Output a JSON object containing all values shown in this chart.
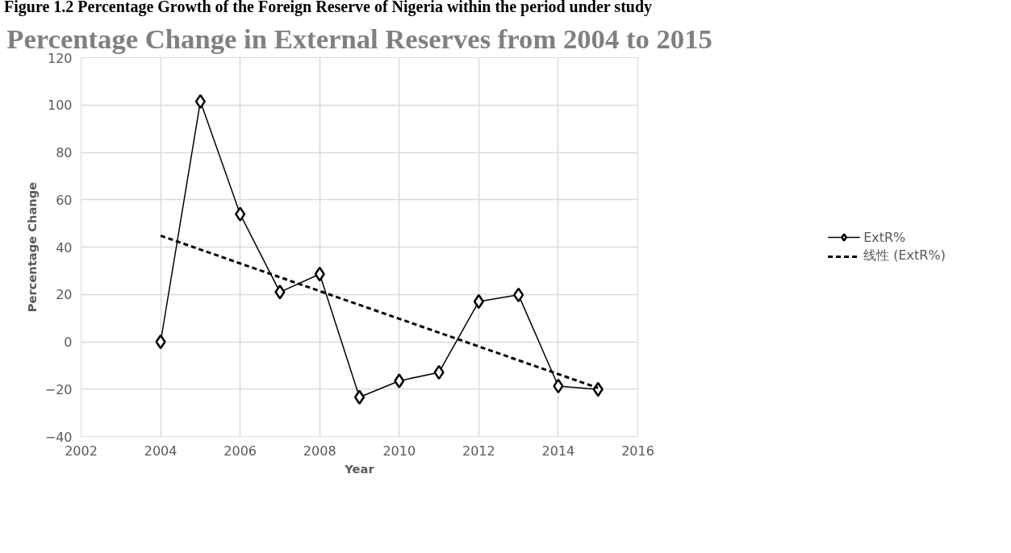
{
  "chart_data": {
    "type": "line",
    "title": "Percentage Change in External Reserves from 2004 to 2015",
    "xlabel": "Year",
    "ylabel": "Percentage Change",
    "annotations": [
      "Figure 1.2 Percentage Growth of the Foreign Reserve of Nigeria within the period under study"
    ],
    "x": [
      2004,
      2005,
      2006,
      2007,
      2008,
      2009,
      2010,
      2011,
      2012,
      2013,
      2014,
      2015
    ],
    "series": [
      {
        "name": "ExtR%",
        "color": "#000000",
        "marker": "diamond",
        "line_style": "solid",
        "values": [
          0,
          101.5,
          53.9,
          21,
          28.6,
          -23.4,
          -16.5,
          -12.9,
          17,
          19.8,
          -18.7,
          -20.1
        ]
      },
      {
        "name": "线性 (ExtR%)",
        "type": "line",
        "color": "#000000",
        "marker": "none",
        "line_style": "dashed",
        "x": [
          2004,
          2015
        ],
        "values": [
          44.8,
          -19.5
        ]
      }
    ],
    "xlim": [
      2002,
      2016
    ],
    "xticks": [
      2002,
      2004,
      2006,
      2008,
      2010,
      2012,
      2014,
      2016
    ],
    "ylim": [
      -40,
      120
    ],
    "yticks": [
      -40,
      -20,
      0,
      20,
      40,
      60,
      80,
      100,
      120
    ],
    "grid": true,
    "legend": "right"
  }
}
